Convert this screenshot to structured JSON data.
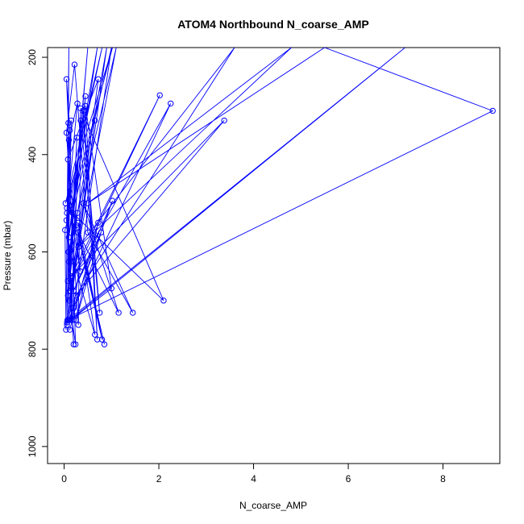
{
  "chart_data": {
    "type": "line",
    "title": "ATOM4 Northbound N_coarse_AMP",
    "xlabel": "N_coarse_AMP",
    "ylabel": "Pressure (mbar)",
    "xlim": [
      -0.35,
      9.2
    ],
    "ylim": [
      1035,
      180
    ],
    "y_reversed": true,
    "xticks": [
      0,
      2,
      4,
      6,
      8
    ],
    "yticks": [
      200,
      400,
      600,
      800,
      1000
    ],
    "grid": false,
    "legend": "none",
    "color": "#0000ff",
    "series": [
      {
        "points": [
          [
            0.09,
            335
          ],
          [
            0.05,
            245
          ],
          [
            0.12,
            350
          ],
          [
            0.07,
            740
          ],
          [
            0.1,
            180
          ],
          [
            0.04,
            760
          ],
          [
            0.02,
            555
          ],
          [
            1.02,
            180
          ],
          [
            0.03,
            500
          ],
          [
            0.8,
            180
          ],
          [
            0.06,
            510
          ],
          [
            0.2,
            790
          ],
          [
            0.05,
            535
          ],
          [
            0.15,
            330
          ],
          [
            0.08,
            660
          ],
          [
            0.5,
            180
          ],
          [
            0.1,
            620
          ],
          [
            0.9,
            180
          ],
          [
            0.06,
            750
          ],
          [
            0.27,
            365
          ],
          [
            0.12,
            680
          ],
          [
            1.1,
            180
          ],
          [
            0.09,
            600
          ],
          [
            0.28,
            520
          ],
          [
            0.08,
            690
          ],
          [
            0.45,
            280
          ],
          [
            0.1,
            570
          ],
          [
            0.7,
            180
          ],
          [
            0.12,
            505
          ],
          [
            0.34,
            640
          ],
          [
            0.08,
            410
          ],
          [
            0.72,
            245
          ],
          [
            0.11,
            700
          ],
          [
            0.24,
            790
          ],
          [
            0.1,
            370
          ],
          [
            0.28,
            295
          ],
          [
            0.06,
            520
          ],
          [
            0.2,
            740
          ],
          [
            0.2,
            620
          ],
          [
            0.65,
            770
          ],
          [
            0.3,
            540
          ],
          [
            0.8,
            780
          ],
          [
            0.25,
            545
          ],
          [
            0.85,
            790
          ],
          [
            0.3,
            560
          ],
          [
            1.15,
            725
          ],
          [
            0.4,
            500
          ],
          [
            1.45,
            725
          ],
          [
            0.5,
            560
          ],
          [
            0.22,
            215
          ],
          [
            0.05,
            355
          ],
          [
            0.3,
            750
          ],
          [
            0.35,
            330
          ],
          [
            0.75,
            725
          ],
          [
            0.4,
            310
          ],
          [
            0.7,
            780
          ],
          [
            0.45,
            300
          ],
          [
            1.0,
            675
          ],
          [
            0.14,
            740
          ],
          [
            0.35,
            305
          ],
          [
            2.1,
            700
          ],
          [
            0.18,
            520
          ],
          [
            1.0,
            180
          ],
          [
            0.2,
            715
          ],
          [
            2.25,
            295
          ],
          [
            0.15,
            660
          ],
          [
            2.02,
            278
          ],
          [
            0.15,
            650
          ],
          [
            3.38,
            330
          ],
          [
            0.25,
            690
          ],
          [
            3.6,
            180
          ],
          [
            0.3,
            590
          ],
          [
            4.8,
            180
          ],
          [
            0.5,
            500
          ],
          [
            5.5,
            180
          ],
          [
            9.05,
            310
          ],
          [
            0.08,
            740
          ],
          [
            7.2,
            180
          ],
          [
            0.06,
            745
          ],
          [
            0.65,
            330
          ],
          [
            0.1,
            740
          ],
          [
            1.02,
            495
          ],
          [
            0.2,
            680
          ],
          [
            0.78,
            560
          ],
          [
            0.25,
            740
          ],
          [
            0.72,
            540
          ],
          [
            0.12,
            760
          ]
        ]
      }
    ]
  }
}
